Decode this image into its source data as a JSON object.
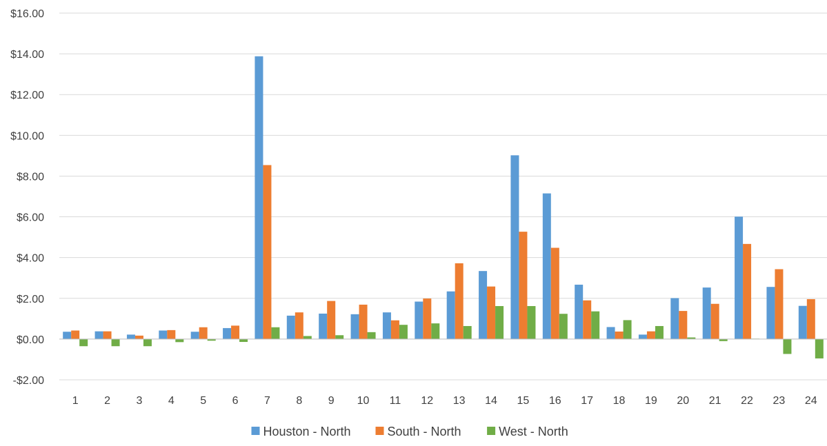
{
  "chart_data": {
    "type": "bar",
    "title": "",
    "xlabel": "",
    "ylabel": "",
    "categories": [
      "1",
      "2",
      "3",
      "4",
      "5",
      "6",
      "7",
      "8",
      "9",
      "10",
      "11",
      "12",
      "13",
      "14",
      "15",
      "16",
      "17",
      "18",
      "19",
      "20",
      "21",
      "22",
      "23",
      "24"
    ],
    "series": [
      {
        "name": "Houston - North",
        "color": "#5B9BD5",
        "values": [
          0.36,
          0.38,
          0.22,
          0.42,
          0.36,
          0.54,
          13.88,
          1.15,
          1.25,
          1.22,
          1.31,
          1.84,
          2.34,
          3.34,
          9.02,
          7.15,
          2.67,
          0.59,
          0.22,
          2.01,
          2.53,
          6.01,
          2.56,
          1.63
        ]
      },
      {
        "name": "South - North",
        "color": "#ED7D31",
        "values": [
          0.42,
          0.38,
          0.17,
          0.44,
          0.58,
          0.66,
          8.54,
          1.31,
          1.87,
          1.69,
          0.92,
          1.99,
          3.72,
          2.58,
          5.27,
          4.48,
          1.9,
          0.37,
          0.38,
          1.38,
          1.73,
          4.67,
          3.43,
          1.96
        ]
      },
      {
        "name": "West - North",
        "color": "#70AD47",
        "values": [
          -0.35,
          -0.35,
          -0.35,
          -0.15,
          -0.08,
          -0.14,
          0.58,
          0.15,
          0.19,
          0.34,
          0.7,
          0.77,
          0.64,
          1.62,
          1.62,
          1.24,
          1.36,
          0.93,
          0.64,
          0.08,
          -0.1,
          0.02,
          -0.73,
          -0.95
        ]
      }
    ],
    "ylim": [
      -2,
      16
    ],
    "yticks": [
      -2,
      0,
      2,
      4,
      6,
      8,
      10,
      12,
      14,
      16
    ],
    "ytick_labels": [
      "-$2.00",
      "$0.00",
      "$2.00",
      "$4.00",
      "$6.00",
      "$8.00",
      "$10.00",
      "$12.00",
      "$14.00",
      "$16.00"
    ],
    "grid": true,
    "legend_position": "bottom"
  }
}
